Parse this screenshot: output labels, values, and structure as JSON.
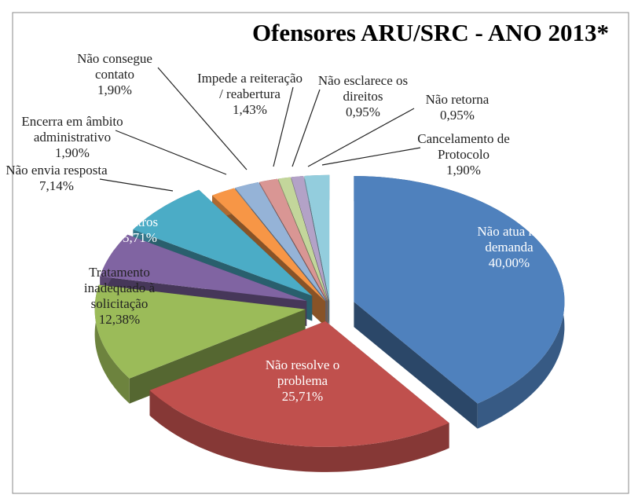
{
  "chart_data": {
    "type": "pie3d",
    "title": "Ofensores ARU/SRC - ANO 2013*",
    "categories": [
      "Não atua na demanda",
      "Não resolve o problema",
      "Tratamento inadequado à solicitação",
      "Outros",
      "Não envia resposta",
      "Encerra em âmbito administrativo",
      "Não consegue contato",
      "Impede a reiteração / reabertura",
      "Não esclarece os direitos",
      "Não retorna",
      "Cancelamento de Protocolo"
    ],
    "values": [
      40.0,
      25.71,
      12.38,
      5.71,
      7.14,
      1.9,
      1.9,
      1.43,
      0.95,
      0.95,
      1.9
    ],
    "value_labels": [
      "40,00%",
      "25,71%",
      "12,38%",
      "5,71%",
      "7,14%",
      "1,90%",
      "1,90%",
      "1,43%",
      "0,95%",
      "0,95%",
      "1,90%"
    ],
    "colors": [
      "#4f81bd",
      "#c0504d",
      "#9bbb59",
      "#8064a2",
      "#4bacc6",
      "#f79646",
      "#95b3d7",
      "#d99694",
      "#c3d69b",
      "#b3a2c7",
      "#93cddd"
    ]
  }
}
